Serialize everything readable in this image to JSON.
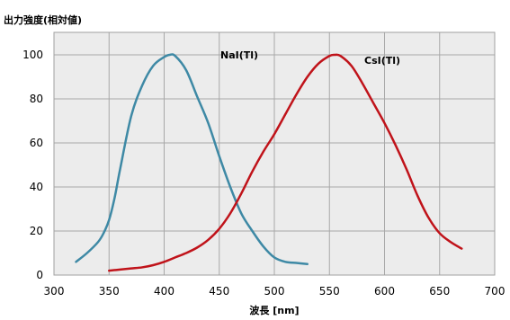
{
  "chart_data": {
    "type": "line",
    "title": "",
    "ylabel": "出力強度(相対値)",
    "xlabel": "波長 [nm]",
    "xlim": [
      300,
      700
    ],
    "ylim": [
      0,
      100
    ],
    "xticks": [
      "300",
      "350",
      "400",
      "450",
      "500",
      "550",
      "600",
      "650",
      "700"
    ],
    "yticks": [
      "0",
      "20",
      "40",
      "60",
      "80",
      "100"
    ],
    "grid": true,
    "legend": "none (labels placed next to curve peaks)",
    "series": [
      {
        "name": "NaI(Tl)",
        "color": "#3e89a5",
        "x": [
          320,
          330,
          340,
          345,
          350,
          355,
          360,
          370,
          380,
          390,
          400,
          405,
          410,
          420,
          430,
          440,
          450,
          460,
          470,
          480,
          490,
          500,
          510,
          520,
          530
        ],
        "y": [
          6,
          10,
          15,
          19,
          25,
          35,
          48,
          72,
          86,
          95,
          99,
          100,
          99.5,
          93,
          81,
          69,
          54,
          40,
          28,
          20,
          13,
          8,
          6,
          5.5,
          5
        ]
      },
      {
        "name": "CsI(Tl)",
        "color": "#c0131a",
        "x": [
          350,
          360,
          370,
          380,
          390,
          400,
          410,
          420,
          430,
          440,
          450,
          460,
          470,
          480,
          490,
          500,
          510,
          520,
          530,
          540,
          550,
          555,
          560,
          570,
          580,
          590,
          600,
          610,
          620,
          630,
          640,
          650,
          660,
          670
        ],
        "y": [
          2,
          2.5,
          3,
          3.5,
          4.5,
          6,
          8,
          10,
          12.5,
          16,
          21,
          28,
          37,
          47,
          56,
          64,
          73,
          82,
          90,
          96,
          99.5,
          100,
          99.5,
          95,
          87,
          78,
          69,
          59,
          48,
          36,
          26,
          19,
          15,
          12
        ]
      }
    ]
  },
  "series_labels": {
    "nai": "NaI(Tl)",
    "csi": "CsI(Tl)"
  }
}
